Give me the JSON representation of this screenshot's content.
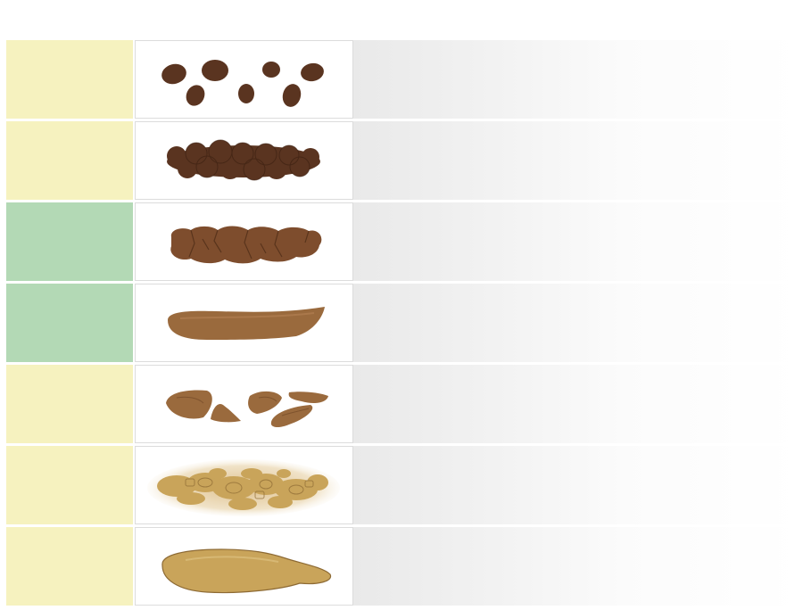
{
  "colors": {
    "normal": "#b3d9b5",
    "abnormal": "#f6f2bf",
    "stool_dark": "#5a3420",
    "stool_medium": "#7e4d2d",
    "stool_light": "#9a6a3d",
    "stool_yellow": "#c9a45a"
  },
  "rows": [
    {
      "category": "abnormal",
      "icon": "separate-hard-lumps-icon"
    },
    {
      "category": "abnormal",
      "icon": "lumpy-sausage-icon"
    },
    {
      "category": "normal",
      "icon": "cracked-sausage-icon"
    },
    {
      "category": "normal",
      "icon": "smooth-snake-icon"
    },
    {
      "category": "abnormal",
      "icon": "soft-blobs-icon"
    },
    {
      "category": "abnormal",
      "icon": "mushy-pieces-icon"
    },
    {
      "category": "abnormal",
      "icon": "watery-puddle-icon"
    }
  ]
}
